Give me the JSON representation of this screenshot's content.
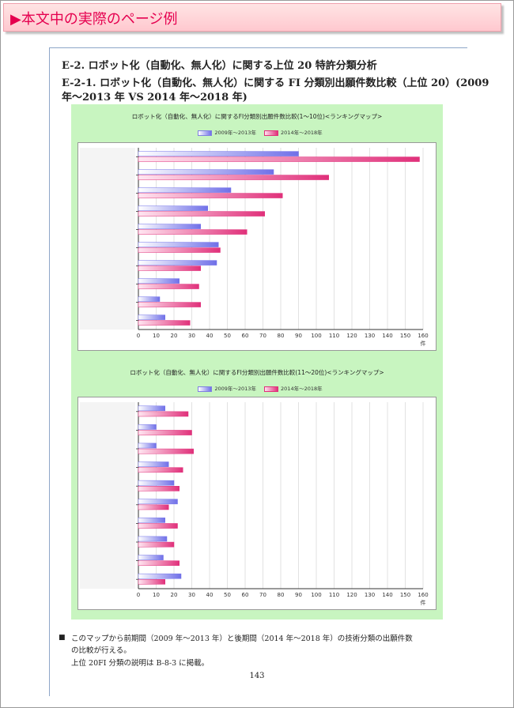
{
  "banner": {
    "text": "▶本文中の実際のページ例"
  },
  "heading": {
    "line1": "E-2.  ロボット化（自動化、無人化）に関する上位 20 特許分類分析",
    "line2": "E-2-1.  ロボット化（自動化、無人化）に関する FI 分類別出願件数比較（上位 20）(2009",
    "line3": "年～2013 年  VS 2014 年～2018 年)"
  },
  "colors": {
    "series_a": "#7070e8",
    "series_b": "#e0307a",
    "panel": "#c8f5c0",
    "banner": "#e5004f"
  },
  "chart_data": [
    {
      "type": "bar",
      "orientation": "horizontal",
      "title": "ロボット化（自動化、無人化）に関するFI分類別出願件数比較(1～10位)<ランキングマップ>",
      "legend": [
        "2009年～2013年",
        "2014年～2018年"
      ],
      "xunit": "件",
      "xlim": [
        0,
        160
      ],
      "xticks": [
        0,
        10,
        20,
        30,
        40,
        50,
        60,
        70,
        80,
        90,
        100,
        110,
        120,
        130,
        140,
        150,
        160
      ],
      "categories_count": 10,
      "series": [
        {
          "name": "2009年～2013年",
          "values": [
            90,
            76,
            52,
            39,
            35,
            45,
            44,
            23,
            12,
            15
          ]
        },
        {
          "name": "2014年～2018年",
          "values": [
            158,
            107,
            81,
            71,
            61,
            46,
            35,
            34,
            35,
            29
          ]
        }
      ],
      "grid": true
    },
    {
      "type": "bar",
      "orientation": "horizontal",
      "title": "ロボット化（自動化、無人化）に関するFI分類別出願件数比較(11～20位)<ランキングマップ>",
      "legend": [
        "2009年～2013年",
        "2014年～2018年"
      ],
      "xunit": "件",
      "xlim": [
        0,
        160
      ],
      "xticks": [
        0,
        10,
        20,
        30,
        40,
        50,
        60,
        70,
        80,
        90,
        100,
        110,
        120,
        130,
        140,
        150,
        160
      ],
      "categories_count": 10,
      "series": [
        {
          "name": "2009年～2013年",
          "values": [
            15,
            10,
            10,
            17,
            20,
            22,
            15,
            16,
            14,
            24
          ]
        },
        {
          "name": "2014年～2018年",
          "values": [
            28,
            30,
            31,
            25,
            23,
            17,
            22,
            20,
            23,
            15
          ]
        }
      ],
      "grid": true
    }
  ],
  "footer": {
    "bullet": "■",
    "line1": "このマップから前期間（2009 年～2013 年）と後期間（2014 年～2018 年）の技術分類の出願件数",
    "line2": "の比較が行える。",
    "line3": "上位 20FI 分類の説明は B-8-3 に掲載。",
    "page_number": "143"
  }
}
